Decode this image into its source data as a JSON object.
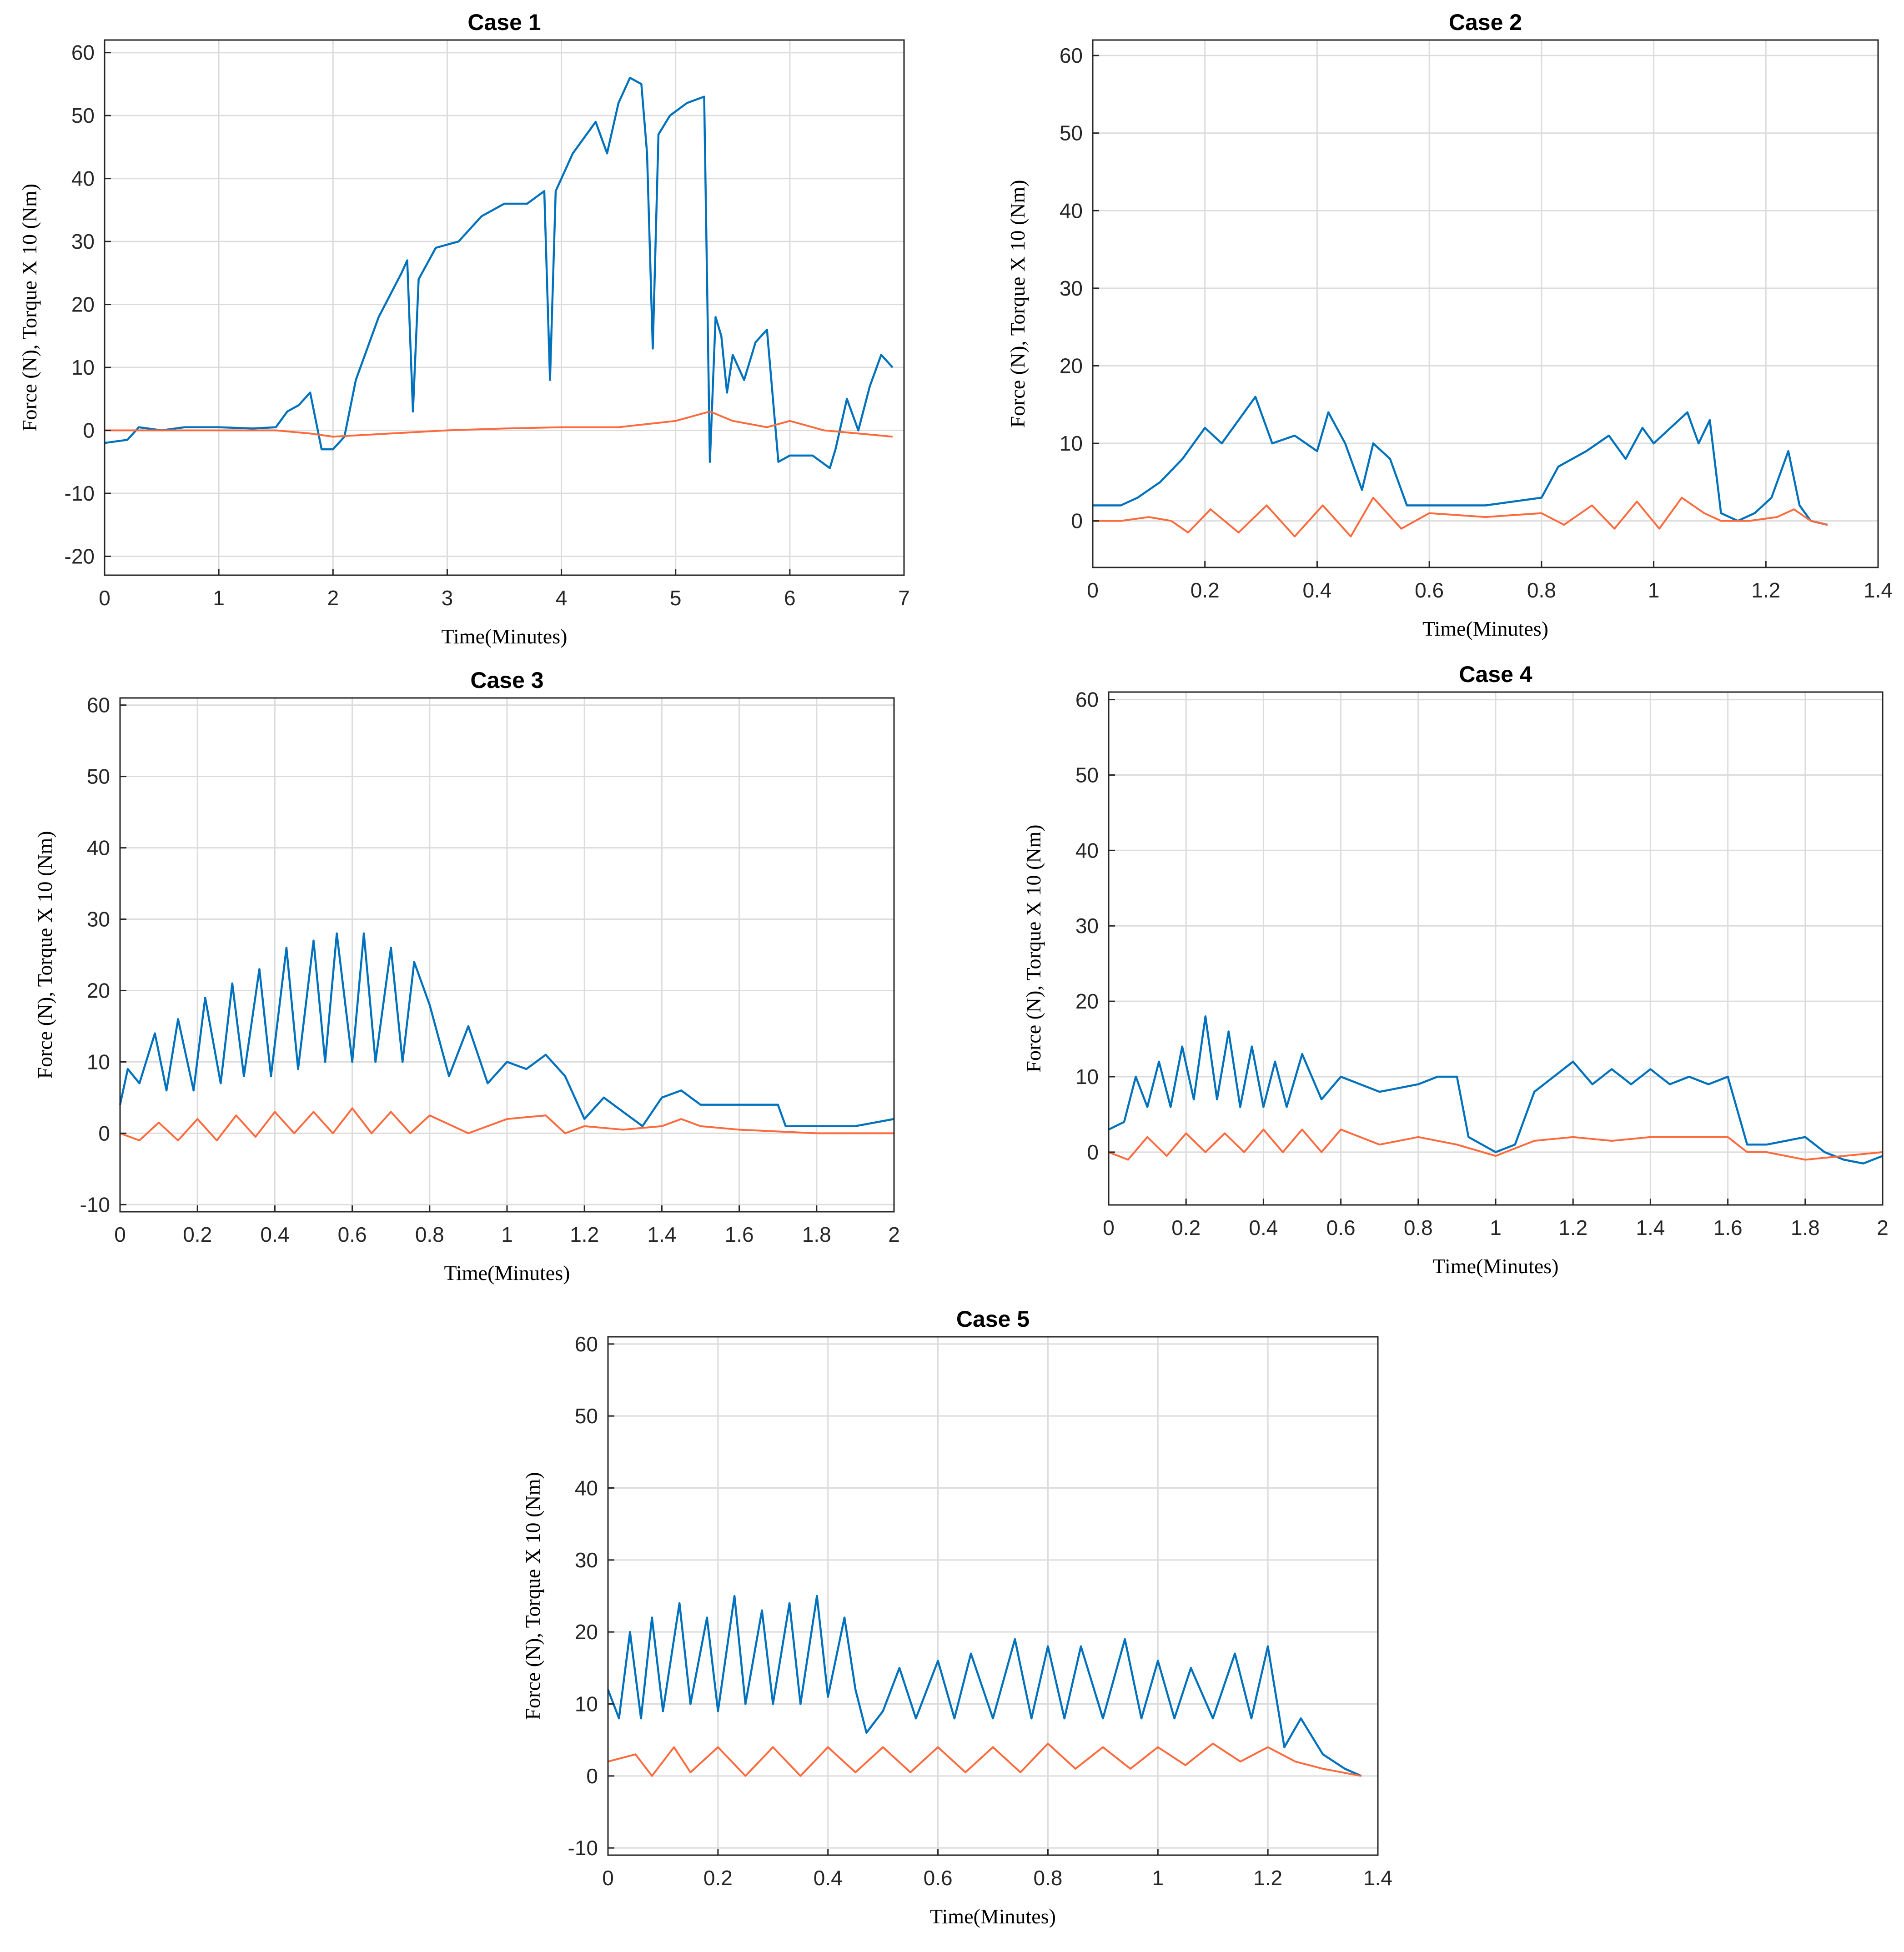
{
  "colors": {
    "force": "#0072BD",
    "torque": "#FF6A3D",
    "grid": "#dcdcdc",
    "axis": "#262626"
  },
  "chart_data": [
    {
      "type": "line",
      "title": "Case 1",
      "xlabel": "Time(Minutes)",
      "ylabel": "Force (N), Torque X 10 (Nm)",
      "xlim": [
        0,
        7
      ],
      "ylim": [
        -23,
        62
      ],
      "xticks": [
        0,
        1,
        2,
        3,
        4,
        5,
        6,
        7
      ],
      "xticklabels": [
        "0",
        "1",
        "2",
        "3",
        "4",
        "5",
        "6",
        "7"
      ],
      "yticks": [
        -20,
        -10,
        0,
        10,
        20,
        30,
        40,
        50,
        60
      ],
      "yticklabels": [
        "-20",
        "-10",
        "0",
        "10",
        "20",
        "30",
        "40",
        "50",
        "60"
      ],
      "series": [
        {
          "name": "Force",
          "color": "#0072BD",
          "x": [
            0,
            0.2,
            0.3,
            0.5,
            0.7,
            1.0,
            1.3,
            1.5,
            1.6,
            1.7,
            1.8,
            1.9,
            2.0,
            2.1,
            2.2,
            2.4,
            2.6,
            2.65,
            2.7,
            2.75,
            2.9,
            3.1,
            3.3,
            3.5,
            3.7,
            3.85,
            3.9,
            3.95,
            4.1,
            4.3,
            4.4,
            4.5,
            4.6,
            4.7,
            4.75,
            4.8,
            4.85,
            4.95,
            5.1,
            5.25,
            5.3,
            5.35,
            5.4,
            5.45,
            5.5,
            5.6,
            5.7,
            5.8,
            5.9,
            6.0,
            6.2,
            6.35,
            6.4,
            6.5,
            6.6,
            6.7,
            6.8,
            6.9
          ],
          "values": [
            -2,
            -1.5,
            0.5,
            0,
            0.5,
            0.5,
            0.3,
            0.5,
            3,
            4,
            6,
            -3,
            -3,
            -1,
            8,
            18,
            25,
            27,
            3,
            24,
            29,
            30,
            34,
            36,
            36,
            38,
            8,
            38,
            44,
            49,
            44,
            52,
            56,
            55,
            44,
            13,
            47,
            50,
            52,
            53,
            -5,
            18,
            15,
            6,
            12,
            8,
            14,
            16,
            -5,
            -4,
            -4,
            -6,
            -3,
            5,
            0,
            7,
            12,
            10
          ]
        },
        {
          "name": "Torque",
          "color": "#FF6A3D",
          "x": [
            0,
            0.5,
            1.0,
            1.5,
            1.8,
            2.0,
            2.5,
            3.0,
            3.5,
            4.0,
            4.5,
            5.0,
            5.3,
            5.5,
            5.8,
            6.0,
            6.3,
            6.6,
            6.9
          ],
          "values": [
            0,
            0,
            0,
            0,
            -0.5,
            -1,
            -0.5,
            0,
            0.3,
            0.5,
            0.5,
            1.5,
            3,
            1.5,
            0.5,
            1.5,
            0,
            -0.5,
            -1
          ]
        }
      ]
    },
    {
      "type": "line",
      "title": "Case 2",
      "xlabel": "Time(Minutes)",
      "ylabel": "Force (N), Torque X 10 (Nm)",
      "xlim": [
        0,
        1.4
      ],
      "ylim": [
        -6,
        62
      ],
      "xticks": [
        0,
        0.2,
        0.4,
        0.6,
        0.8,
        1.0,
        1.2,
        1.4
      ],
      "xticklabels": [
        "0",
        "0.2",
        "0.4",
        "0.6",
        "0.8",
        "1",
        "1.2",
        "1.4"
      ],
      "yticks": [
        0,
        10,
        20,
        30,
        40,
        50,
        60
      ],
      "yticklabels": [
        "0",
        "10",
        "20",
        "30",
        "40",
        "50",
        "60"
      ],
      "series": [
        {
          "name": "Force",
          "color": "#0072BD",
          "x": [
            0,
            0.05,
            0.08,
            0.12,
            0.16,
            0.2,
            0.23,
            0.26,
            0.29,
            0.32,
            0.36,
            0.4,
            0.42,
            0.45,
            0.48,
            0.5,
            0.53,
            0.56,
            0.6,
            0.7,
            0.8,
            0.83,
            0.88,
            0.92,
            0.95,
            0.98,
            1.0,
            1.03,
            1.06,
            1.08,
            1.1,
            1.12,
            1.15,
            1.18,
            1.21,
            1.24,
            1.26,
            1.28,
            1.31
          ],
          "values": [
            2,
            2,
            3,
            5,
            8,
            12,
            10,
            13,
            16,
            10,
            11,
            9,
            14,
            10,
            4,
            10,
            8,
            2,
            2,
            2,
            3,
            7,
            9,
            11,
            8,
            12,
            10,
            12,
            14,
            10,
            13,
            1,
            0,
            1,
            3,
            9,
            2,
            0,
            -0.5
          ]
        },
        {
          "name": "Torque",
          "color": "#FF6A3D",
          "x": [
            0,
            0.05,
            0.1,
            0.14,
            0.17,
            0.21,
            0.26,
            0.31,
            0.36,
            0.41,
            0.46,
            0.5,
            0.55,
            0.6,
            0.7,
            0.8,
            0.84,
            0.89,
            0.93,
            0.97,
            1.01,
            1.05,
            1.09,
            1.12,
            1.17,
            1.22,
            1.25,
            1.28,
            1.31
          ],
          "values": [
            0,
            0,
            0.5,
            0,
            -1.5,
            1.5,
            -1.5,
            2,
            -2,
            2,
            -2,
            3,
            -1,
            1,
            0.5,
            1,
            -0.5,
            2,
            -1,
            2.5,
            -1,
            3,
            1,
            0,
            0,
            0.5,
            1.5,
            0,
            -0.5
          ]
        }
      ]
    },
    {
      "type": "line",
      "title": "Case 3",
      "xlabel": "Time(Minutes)",
      "ylabel": "Force (N), Torque X 10 (Nm)",
      "xlim": [
        0,
        2
      ],
      "ylim": [
        -11,
        61
      ],
      "xticks": [
        0,
        0.2,
        0.4,
        0.6,
        0.8,
        1.0,
        1.2,
        1.4,
        1.6,
        1.8,
        2.0
      ],
      "xticklabels": [
        "0",
        "0.2",
        "0.4",
        "0.6",
        "0.8",
        "1",
        "1.2",
        "1.4",
        "1.6",
        "1.8",
        "2"
      ],
      "yticks": [
        -10,
        0,
        10,
        20,
        30,
        40,
        50,
        60
      ],
      "yticklabels": [
        "-10",
        "0",
        "10",
        "20",
        "30",
        "40",
        "50",
        "60"
      ],
      "series": [
        {
          "name": "Force",
          "color": "#0072BD",
          "x": [
            0,
            0.02,
            0.05,
            0.09,
            0.12,
            0.15,
            0.19,
            0.22,
            0.26,
            0.29,
            0.32,
            0.36,
            0.39,
            0.43,
            0.46,
            0.5,
            0.53,
            0.56,
            0.6,
            0.63,
            0.66,
            0.7,
            0.73,
            0.76,
            0.8,
            0.85,
            0.9,
            0.95,
            1.0,
            1.05,
            1.1,
            1.15,
            1.2,
            1.25,
            1.3,
            1.35,
            1.4,
            1.45,
            1.5,
            1.6,
            1.7,
            1.72,
            1.8,
            1.9,
            2.0
          ],
          "values": [
            4,
            9,
            7,
            14,
            6,
            16,
            6,
            19,
            7,
            21,
            8,
            23,
            8,
            26,
            9,
            27,
            10,
            28,
            10,
            28,
            10,
            26,
            10,
            24,
            18,
            8,
            15,
            7,
            10,
            9,
            11,
            8,
            2,
            5,
            3,
            1,
            5,
            6,
            4,
            4,
            4,
            1,
            1,
            1,
            2
          ]
        },
        {
          "name": "Torque",
          "color": "#FF6A3D",
          "x": [
            0,
            0.05,
            0.1,
            0.15,
            0.2,
            0.25,
            0.3,
            0.35,
            0.4,
            0.45,
            0.5,
            0.55,
            0.6,
            0.65,
            0.7,
            0.75,
            0.8,
            0.9,
            1.0,
            1.1,
            1.15,
            1.2,
            1.3,
            1.4,
            1.45,
            1.5,
            1.6,
            1.8,
            2.0
          ],
          "values": [
            0,
            -1,
            1.5,
            -1,
            2,
            -1,
            2.5,
            -0.5,
            3,
            0,
            3,
            0,
            3.5,
            0,
            3,
            0,
            2.5,
            0,
            2,
            2.5,
            0,
            1,
            0.5,
            1,
            2,
            1,
            0.5,
            0,
            0
          ]
        }
      ]
    },
    {
      "type": "line",
      "title": "Case 4",
      "xlabel": "Time(Minutes)",
      "ylabel": "Force (N), Torque X 10 (Nm)",
      "xlim": [
        0,
        2
      ],
      "ylim": [
        -7,
        61
      ],
      "xticks": [
        0,
        0.2,
        0.4,
        0.6,
        0.8,
        1.0,
        1.2,
        1.4,
        1.6,
        1.8,
        2.0
      ],
      "xticklabels": [
        "0",
        "0.2",
        "0.4",
        "0.6",
        "0.8",
        "1",
        "1.2",
        "1.4",
        "1.6",
        "1.8",
        "2"
      ],
      "yticks": [
        0,
        10,
        20,
        30,
        40,
        50,
        60
      ],
      "yticklabels": [
        "0",
        "10",
        "20",
        "30",
        "40",
        "50",
        "60"
      ],
      "series": [
        {
          "name": "Force",
          "color": "#0072BD",
          "x": [
            0,
            0.04,
            0.07,
            0.1,
            0.13,
            0.16,
            0.19,
            0.22,
            0.25,
            0.28,
            0.31,
            0.34,
            0.37,
            0.4,
            0.43,
            0.46,
            0.5,
            0.55,
            0.6,
            0.7,
            0.8,
            0.85,
            0.9,
            0.93,
            1.0,
            1.05,
            1.1,
            1.15,
            1.2,
            1.25,
            1.3,
            1.35,
            1.4,
            1.45,
            1.5,
            1.55,
            1.6,
            1.65,
            1.7,
            1.8,
            1.85,
            1.9,
            1.95,
            2.0
          ],
          "values": [
            3,
            4,
            10,
            6,
            12,
            6,
            14,
            7,
            18,
            7,
            16,
            6,
            14,
            6,
            12,
            6,
            13,
            7,
            10,
            8,
            9,
            10,
            10,
            2,
            0,
            1,
            8,
            10,
            12,
            9,
            11,
            9,
            11,
            9,
            10,
            9,
            10,
            1,
            1,
            2,
            0,
            -1,
            -1.5,
            -0.5
          ]
        },
        {
          "name": "Torque",
          "color": "#FF6A3D",
          "x": [
            0,
            0.05,
            0.1,
            0.15,
            0.2,
            0.25,
            0.3,
            0.35,
            0.4,
            0.45,
            0.5,
            0.55,
            0.6,
            0.7,
            0.8,
            0.9,
            1.0,
            1.1,
            1.2,
            1.3,
            1.4,
            1.5,
            1.6,
            1.65,
            1.7,
            1.8,
            1.9,
            2.0
          ],
          "values": [
            0,
            -1,
            2,
            -0.5,
            2.5,
            0,
            2.5,
            0,
            3,
            0,
            3,
            0,
            3,
            1,
            2,
            1,
            -0.5,
            1.5,
            2,
            1.5,
            2,
            2,
            2,
            0,
            0,
            -1,
            -0.5,
            0
          ]
        }
      ]
    },
    {
      "type": "line",
      "title": "Case 5",
      "xlabel": "Time(Minutes)",
      "ylabel": "Force (N), Torque X 10 (Nm)",
      "xlim": [
        0,
        1.4
      ],
      "ylim": [
        -11,
        61
      ],
      "xticks": [
        0,
        0.2,
        0.4,
        0.6,
        0.8,
        1.0,
        1.2,
        1.4
      ],
      "xticklabels": [
        "0",
        "0.2",
        "0.4",
        "0.6",
        "0.8",
        "1",
        "1.2",
        "1.4"
      ],
      "yticks": [
        -10,
        0,
        10,
        20,
        30,
        40,
        50,
        60
      ],
      "yticklabels": [
        "-10",
        "0",
        "10",
        "20",
        "30",
        "40",
        "50",
        "60"
      ],
      "series": [
        {
          "name": "Force",
          "color": "#0072BD",
          "x": [
            0,
            0.02,
            0.04,
            0.06,
            0.08,
            0.1,
            0.13,
            0.15,
            0.18,
            0.2,
            0.23,
            0.25,
            0.28,
            0.3,
            0.33,
            0.35,
            0.38,
            0.4,
            0.43,
            0.45,
            0.47,
            0.5,
            0.53,
            0.56,
            0.6,
            0.63,
            0.66,
            0.7,
            0.74,
            0.77,
            0.8,
            0.83,
            0.86,
            0.9,
            0.94,
            0.97,
            1.0,
            1.03,
            1.06,
            1.1,
            1.14,
            1.17,
            1.2,
            1.23,
            1.26,
            1.3,
            1.34,
            1.37
          ],
          "values": [
            12,
            8,
            20,
            8,
            22,
            9,
            24,
            10,
            22,
            9,
            25,
            10,
            23,
            10,
            24,
            10,
            25,
            11,
            22,
            12,
            6,
            9,
            15,
            8,
            16,
            8,
            17,
            8,
            19,
            8,
            18,
            8,
            18,
            8,
            19,
            8,
            16,
            8,
            15,
            8,
            17,
            8,
            18,
            4,
            8,
            3,
            1,
            0
          ]
        },
        {
          "name": "Torque",
          "color": "#FF6A3D",
          "x": [
            0,
            0.05,
            0.08,
            0.12,
            0.15,
            0.2,
            0.25,
            0.3,
            0.35,
            0.4,
            0.45,
            0.5,
            0.55,
            0.6,
            0.65,
            0.7,
            0.75,
            0.8,
            0.85,
            0.9,
            0.95,
            1.0,
            1.05,
            1.1,
            1.15,
            1.2,
            1.25,
            1.3,
            1.37
          ],
          "values": [
            2,
            3,
            0,
            4,
            0.5,
            4,
            0,
            4,
            0,
            4,
            0.5,
            4,
            0.5,
            4,
            0.5,
            4,
            0.5,
            4.5,
            1,
            4,
            1,
            4,
            1.5,
            4.5,
            2,
            4,
            2,
            1,
            0
          ]
        }
      ]
    }
  ]
}
